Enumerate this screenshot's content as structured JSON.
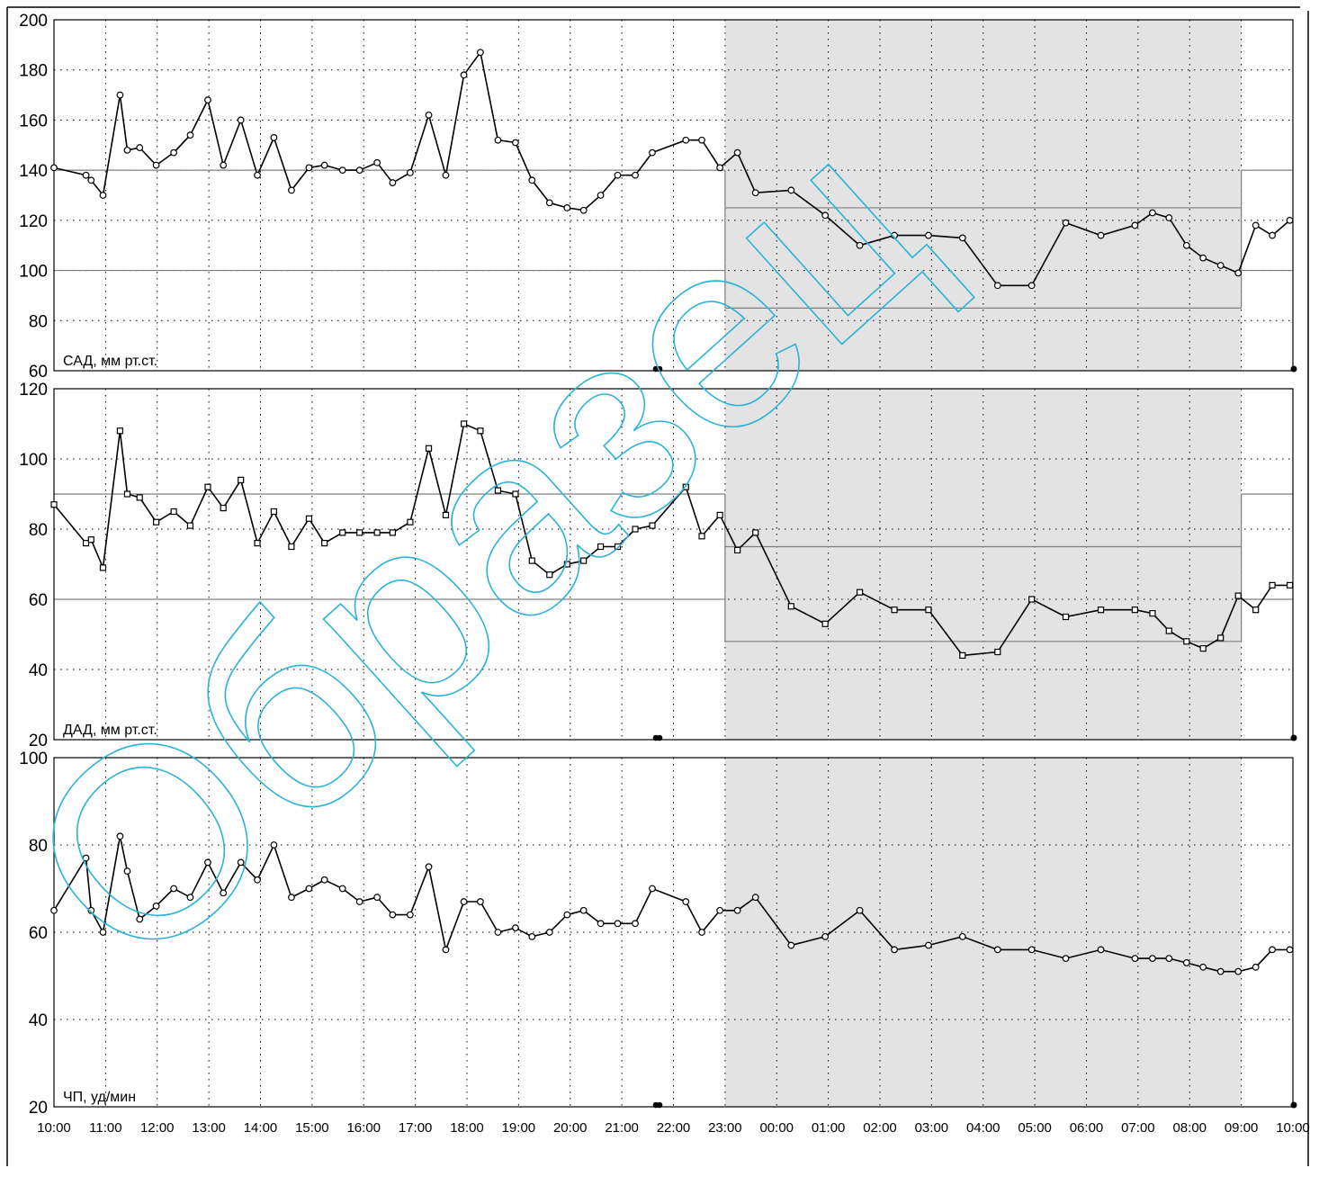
{
  "watermark": "Образец",
  "colors": {
    "line": "#000000",
    "grid": "#000000",
    "night_shade": "#e3e3e3",
    "threshold": "#808080",
    "watermark": "#2ab3d8"
  },
  "chart_data": [
    {
      "type": "line",
      "label": "САД, мм рт.ст.",
      "marker": "circle",
      "ylim": [
        60,
        200
      ],
      "yticks": [
        60,
        80,
        100,
        120,
        140,
        160,
        180,
        200
      ],
      "xticks": [
        "10:00",
        "11:00",
        "12:00",
        "13:00",
        "14:00",
        "15:00",
        "16:00",
        "17:00",
        "18:00",
        "19:00",
        "20:00",
        "21:00",
        "22:00",
        "23:00",
        "00:00",
        "01:00",
        "02:00",
        "03:00",
        "04:00",
        "05:00",
        "06:00",
        "07:00",
        "08:00",
        "09:00",
        "10:00"
      ],
      "grid": "dotted",
      "night_band": {
        "start": 13,
        "end": 23
      },
      "day_limits": [
        100,
        140
      ],
      "night_limits": [
        85,
        125
      ],
      "x": [
        0,
        0.62,
        0.72,
        0.95,
        1.28,
        1.42,
        1.66,
        1.98,
        2.32,
        2.64,
        2.98,
        3.28,
        3.62,
        3.94,
        4.26,
        4.6,
        4.94,
        5.24,
        5.59,
        5.92,
        6.26,
        6.56,
        6.9,
        7.26,
        7.59,
        7.94,
        8.26,
        8.6,
        8.94,
        9.26,
        9.6,
        9.94,
        10.26,
        10.59,
        10.92,
        11.26,
        11.59,
        12.24,
        12.55,
        12.9,
        13.24,
        13.59,
        14.28,
        14.94,
        15.61,
        16.28,
        16.94,
        17.6,
        18.28,
        18.94,
        19.6,
        20.28,
        20.94,
        21.28,
        21.6,
        21.94,
        22.26,
        22.6,
        22.94,
        23.28,
        23.6,
        23.94
      ],
      "values": [
        141,
        138,
        136,
        130,
        170,
        148,
        149,
        142,
        147,
        154,
        168,
        142,
        160,
        138,
        153,
        132,
        141,
        142,
        140,
        140,
        143,
        135,
        139,
        162,
        138,
        178,
        187,
        152,
        151,
        136,
        127,
        125,
        124,
        130,
        138,
        138,
        147,
        152,
        152,
        141,
        147,
        131,
        132,
        122,
        110,
        114,
        114,
        113,
        94,
        94,
        119,
        114,
        118,
        123,
        121,
        110,
        105,
        102,
        99,
        118,
        114,
        120
      ]
    },
    {
      "type": "line",
      "label": "ДАД, мм рт.ст.",
      "marker": "square",
      "ylim": [
        20,
        120
      ],
      "yticks": [
        20,
        40,
        60,
        80,
        100,
        120
      ],
      "xticks": [
        "10:00",
        "11:00",
        "12:00",
        "13:00",
        "14:00",
        "15:00",
        "16:00",
        "17:00",
        "18:00",
        "19:00",
        "20:00",
        "21:00",
        "22:00",
        "23:00",
        "00:00",
        "01:00",
        "02:00",
        "03:00",
        "04:00",
        "05:00",
        "06:00",
        "07:00",
        "08:00",
        "09:00",
        "10:00"
      ],
      "grid": "dotted",
      "night_band": {
        "start": 13,
        "end": 23
      },
      "day_limits": [
        60,
        90
      ],
      "night_limits": [
        48,
        75
      ],
      "x": [
        0,
        0.62,
        0.72,
        0.95,
        1.28,
        1.42,
        1.66,
        1.98,
        2.32,
        2.64,
        2.98,
        3.28,
        3.62,
        3.94,
        4.26,
        4.6,
        4.94,
        5.24,
        5.59,
        5.92,
        6.26,
        6.56,
        6.9,
        7.26,
        7.59,
        7.94,
        8.26,
        8.6,
        8.94,
        9.26,
        9.6,
        9.94,
        10.26,
        10.59,
        10.92,
        11.26,
        11.59,
        12.24,
        12.55,
        12.9,
        13.24,
        13.59,
        14.28,
        14.94,
        15.61,
        16.28,
        16.94,
        17.6,
        18.28,
        18.94,
        19.6,
        20.28,
        20.94,
        21.28,
        21.6,
        21.94,
        22.26,
        22.6,
        22.94,
        23.28,
        23.6,
        23.94
      ],
      "values": [
        87,
        76,
        77,
        69,
        108,
        90,
        89,
        82,
        85,
        81,
        92,
        86,
        94,
        76,
        85,
        75,
        83,
        76,
        79,
        79,
        79,
        79,
        82,
        103,
        84,
        110,
        108,
        91,
        90,
        71,
        67,
        70,
        71,
        75,
        75,
        80,
        81,
        92,
        78,
        84,
        74,
        79,
        58,
        53,
        62,
        57,
        57,
        44,
        45,
        60,
        55,
        57,
        57,
        56,
        51,
        48,
        46,
        49,
        61,
        57,
        64,
        64
      ]
    },
    {
      "type": "line",
      "label": "ЧП, уд/мин",
      "marker": "circle",
      "ylim": [
        20,
        100
      ],
      "yticks": [
        20,
        40,
        60,
        80,
        100
      ],
      "xticks": [
        "10:00",
        "11:00",
        "12:00",
        "13:00",
        "14:00",
        "15:00",
        "16:00",
        "17:00",
        "18:00",
        "19:00",
        "20:00",
        "21:00",
        "22:00",
        "23:00",
        "00:00",
        "01:00",
        "02:00",
        "03:00",
        "04:00",
        "05:00",
        "06:00",
        "07:00",
        "08:00",
        "09:00",
        "10:00"
      ],
      "grid": "dotted",
      "night_band": {
        "start": 13,
        "end": 23
      },
      "x": [
        0,
        0.62,
        0.72,
        0.95,
        1.28,
        1.42,
        1.66,
        1.98,
        2.32,
        2.64,
        2.98,
        3.28,
        3.62,
        3.94,
        4.26,
        4.6,
        4.94,
        5.24,
        5.59,
        5.92,
        6.26,
        6.56,
        6.9,
        7.26,
        7.59,
        7.94,
        8.26,
        8.6,
        8.94,
        9.26,
        9.6,
        9.94,
        10.26,
        10.59,
        10.92,
        11.26,
        11.59,
        12.24,
        12.55,
        12.9,
        13.24,
        13.59,
        14.28,
        14.94,
        15.61,
        16.28,
        16.94,
        17.6,
        18.28,
        18.94,
        19.6,
        20.28,
        20.94,
        21.28,
        21.6,
        21.94,
        22.26,
        22.6,
        22.94,
        23.28,
        23.6,
        23.94
      ],
      "values": [
        65,
        77,
        65,
        60,
        82,
        74,
        63,
        66,
        70,
        68,
        76,
        69,
        76,
        72,
        80,
        68,
        70,
        72,
        70,
        67,
        68,
        64,
        64,
        75,
        56,
        67,
        67,
        60,
        61,
        59,
        60,
        64,
        65,
        62,
        62,
        62,
        70,
        67,
        60,
        65,
        65,
        68,
        57,
        59,
        65,
        56,
        57,
        59,
        56,
        56,
        54,
        56,
        54,
        54,
        54,
        53,
        52,
        51,
        51,
        52,
        56,
        56
      ]
    }
  ]
}
